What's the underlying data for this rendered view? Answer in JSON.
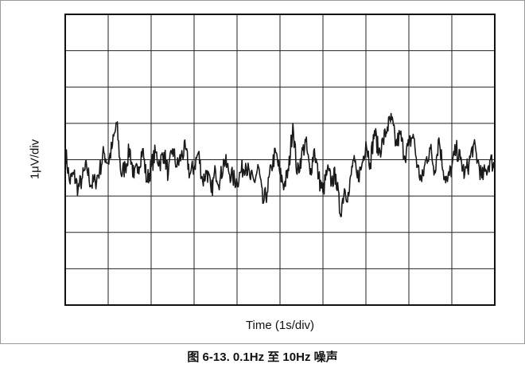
{
  "figure": {
    "caption": "图 6-13. 0.1Hz 至 10Hz 噪声"
  },
  "chart_data": {
    "type": "line",
    "title": "",
    "xlabel": "Time (1s/div)",
    "ylabel": "1μV/div",
    "x_range": [
      0,
      10
    ],
    "y_range": [
      -4,
      4
    ],
    "x_divisions": 10,
    "y_divisions": 8,
    "grid": true,
    "legend": "none",
    "line_color": "#1a1a1a",
    "series": [
      {
        "x": [
          0.0,
          0.1,
          0.2,
          0.3,
          0.4,
          0.5,
          0.6,
          0.7,
          0.8,
          0.9,
          1.0,
          1.1,
          1.2,
          1.3,
          1.4,
          1.5,
          1.6,
          1.7,
          1.8,
          1.9,
          2.0,
          2.1,
          2.2,
          2.3,
          2.4,
          2.5,
          2.6,
          2.7,
          2.8,
          2.9,
          3.0,
          3.1,
          3.2,
          3.3,
          3.4,
          3.5,
          3.6,
          3.7,
          3.8,
          3.9,
          4.0,
          4.1,
          4.2,
          4.3,
          4.4,
          4.5,
          4.6,
          4.7,
          4.8,
          4.9,
          5.0,
          5.1,
          5.2,
          5.3,
          5.4,
          5.5,
          5.6,
          5.7,
          5.8,
          5.9,
          6.0,
          6.1,
          6.2,
          6.3,
          6.4,
          6.5,
          6.6,
          6.7,
          6.8,
          6.9,
          7.0,
          7.1,
          7.2,
          7.3,
          7.4,
          7.5,
          7.6,
          7.7,
          7.8,
          7.9,
          8.0,
          8.1,
          8.2,
          8.3,
          8.4,
          8.5,
          8.6,
          8.7,
          8.8,
          8.9,
          9.0,
          9.1,
          9.2,
          9.3,
          9.4,
          9.5,
          9.6,
          9.7,
          9.8,
          9.9,
          10.0
        ],
        "values": [
          0.3,
          -0.6,
          -0.4,
          -0.8,
          -0.5,
          -0.2,
          -0.7,
          -0.6,
          -0.3,
          0.2,
          -0.1,
          0.4,
          1.0,
          -0.4,
          -0.2,
          0.3,
          -0.5,
          -0.2,
          0.3,
          -0.6,
          -0.2,
          0.2,
          -0.1,
          0.2,
          -0.4,
          0.3,
          -0.2,
          0.1,
          0.3,
          -0.4,
          -0.2,
          0.2,
          -0.6,
          -0.3,
          -0.9,
          -0.3,
          -0.6,
          0.0,
          -0.3,
          -0.5,
          -0.6,
          -0.3,
          -0.1,
          -0.5,
          -0.6,
          -0.2,
          -1.2,
          -0.9,
          -0.2,
          0.2,
          -0.4,
          -0.7,
          -0.3,
          1.0,
          -0.4,
          0.1,
          0.5,
          -0.4,
          0.3,
          -0.5,
          -0.9,
          -0.3,
          -0.6,
          -0.4,
          -1.5,
          -0.8,
          -1.0,
          0.0,
          -0.5,
          -0.2,
          0.5,
          -0.1,
          0.8,
          0.2,
          0.5,
          0.9,
          1.1,
          0.4,
          0.7,
          0.1,
          0.4,
          0.7,
          -0.2,
          -0.6,
          0.0,
          0.3,
          -0.3,
          0.6,
          -0.3,
          -0.6,
          -0.2,
          0.3,
          0.0,
          -0.4,
          -0.1,
          0.4,
          0.0,
          -0.5,
          -0.3,
          0.0,
          -0.2
        ]
      }
    ]
  }
}
